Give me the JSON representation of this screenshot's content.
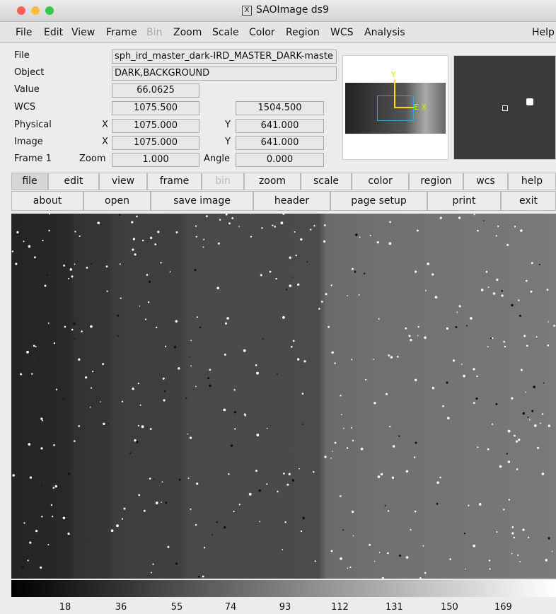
{
  "window": {
    "title": "SAOImage ds9"
  },
  "menu": [
    "File",
    "Edit",
    "View",
    "Frame",
    "Bin",
    "Zoom",
    "Scale",
    "Color",
    "Region",
    "WCS",
    "Analysis",
    "Help"
  ],
  "info": {
    "file": {
      "label": "File",
      "value": "sph_ird_master_dark-IRD_MASTER_DARK-maste"
    },
    "object": {
      "label": "Object",
      "value": "DARK,BACKGROUND"
    },
    "value": {
      "label": "Value",
      "value": "66.0625"
    },
    "wcs": {
      "label": "WCS",
      "x": "1075.500",
      "y": "1504.500"
    },
    "physical": {
      "label": "Physical",
      "x_label": "X",
      "x": "1075.000",
      "y_label": "Y",
      "y": "641.000"
    },
    "image": {
      "label": "Image",
      "x_label": "X",
      "x": "1075.000",
      "y_label": "Y",
      "y": "641.000"
    },
    "frame": {
      "label": "Frame 1",
      "zoom_label": "Zoom",
      "zoom": "1.000",
      "angle_label": "Angle",
      "angle": "0.000"
    }
  },
  "panner": {
    "y_axis": "Y",
    "x_axis": "E X"
  },
  "buttons": {
    "row1": [
      "file",
      "edit",
      "view",
      "frame",
      "bin",
      "zoom",
      "scale",
      "color",
      "region",
      "wcs",
      "help"
    ],
    "row2": [
      "about",
      "open",
      "save image",
      "header",
      "page setup",
      "print",
      "exit"
    ]
  },
  "colorbar": {
    "ticks": [
      18,
      36,
      55,
      74,
      93,
      112,
      131,
      150,
      169
    ]
  }
}
